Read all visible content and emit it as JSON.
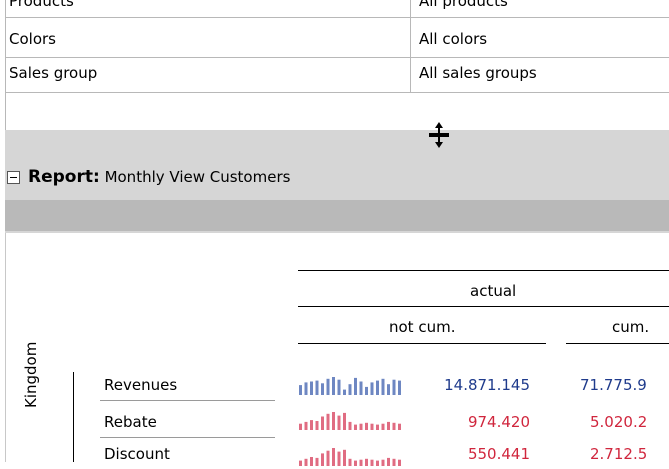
{
  "filters": [
    {
      "label": "Products",
      "value": "All products"
    },
    {
      "label": "Colors",
      "value": "All colors"
    },
    {
      "label": "Sales group",
      "value": "All sales groups"
    }
  ],
  "report": {
    "prefix": "Report:",
    "title": "Monthly View Customers",
    "col_group": "actual",
    "col_not_cum": "not cum.",
    "col_cum": "cum.",
    "row_dimension": "Kingdom",
    "rows": [
      {
        "label": "Revenues",
        "value": "14.871.145",
        "cum": "71.775.9",
        "color": "#1f3b8c",
        "spark_color": "#6e87c2",
        "spark": [
          0.55,
          0.7,
          0.75,
          0.8,
          0.65,
          0.9,
          1.0,
          0.85,
          0.3,
          0.6,
          0.95,
          0.75,
          0.45,
          0.7,
          0.8,
          0.9,
          0.6,
          0.85,
          0.8
        ]
      },
      {
        "label": "Rebate",
        "value": "974.420",
        "cum": "5.020.2",
        "color": "#d0263d",
        "spark_color": "#e06c82",
        "spark": [
          0.35,
          0.45,
          0.55,
          0.5,
          0.75,
          0.9,
          1.0,
          0.8,
          0.95,
          0.45,
          0.3,
          0.35,
          0.4,
          0.35,
          0.3,
          0.35,
          0.45,
          0.4,
          0.35
        ]
      },
      {
        "label": "Discount",
        "value": "550.441",
        "cum": "2.712.5",
        "color": "#d0263d",
        "spark_color": "#e06c82",
        "spark": [
          0.3,
          0.4,
          0.5,
          0.45,
          0.7,
          0.85,
          1.0,
          0.8,
          0.9,
          0.4,
          0.3,
          0.35,
          0.4,
          0.35,
          0.3,
          0.35,
          0.45,
          0.4,
          0.35
        ]
      }
    ]
  }
}
